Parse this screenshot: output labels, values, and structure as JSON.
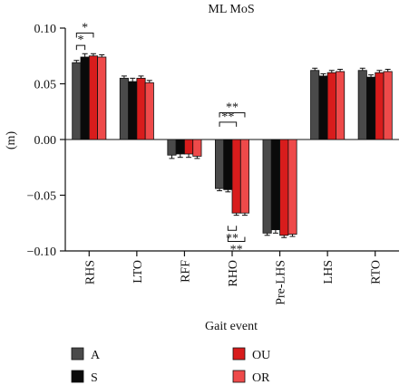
{
  "chart_data": {
    "type": "bar",
    "title": "ML MoS",
    "xlabel": "Gait event",
    "ylabel": "(m)",
    "ylim": [
      -0.1,
      0.1
    ],
    "yticks": [
      0.1,
      0.05,
      0.0,
      -0.05,
      -0.1
    ],
    "ytick_labels": [
      "0.10",
      "0.05",
      "0.00",
      "−0.05",
      "−0.10"
    ],
    "grid": false,
    "legend_position": "bottom",
    "categories": [
      "RHS",
      "LTO",
      "RFF",
      "RHO",
      "Pre-LHS",
      "LHS",
      "RTO"
    ],
    "series": [
      {
        "name": "A",
        "color": "#4a4a4a",
        "values": [
          0.069,
          0.055,
          -0.014,
          -0.044,
          -0.084,
          0.062,
          0.062
        ],
        "errors": [
          0.002,
          0.002,
          0.003,
          0.002,
          0.002,
          0.002,
          0.002
        ]
      },
      {
        "name": "S",
        "color": "#0a0a0a",
        "values": [
          0.074,
          0.052,
          -0.013,
          -0.045,
          -0.081,
          0.057,
          0.056
        ],
        "errors": [
          0.003,
          0.003,
          0.003,
          0.002,
          0.003,
          0.002,
          0.002
        ]
      },
      {
        "name": "OU",
        "color": "#d81c1c",
        "values": [
          0.075,
          0.055,
          -0.013,
          -0.066,
          -0.086,
          0.06,
          0.06
        ],
        "errors": [
          0.002,
          0.002,
          0.003,
          0.002,
          0.002,
          0.002,
          0.002
        ]
      },
      {
        "name": "OR",
        "color": "#ee4a4a",
        "values": [
          0.074,
          0.051,
          -0.015,
          -0.066,
          -0.085,
          0.061,
          0.061
        ],
        "errors": [
          0.002,
          0.002,
          0.002,
          0.002,
          0.002,
          0.002,
          0.002
        ]
      }
    ],
    "legend_order": [
      "A",
      "S",
      "OU",
      "OR"
    ],
    "annotations": [
      {
        "category": "RHS",
        "text": "*"
      },
      {
        "category": "RHS",
        "text": "*"
      },
      {
        "category": "RHO",
        "text": "**"
      },
      {
        "category": "RHO",
        "text": "**"
      },
      {
        "category": "RHO",
        "text": "**"
      },
      {
        "category": "RHO",
        "text": "**"
      }
    ]
  }
}
